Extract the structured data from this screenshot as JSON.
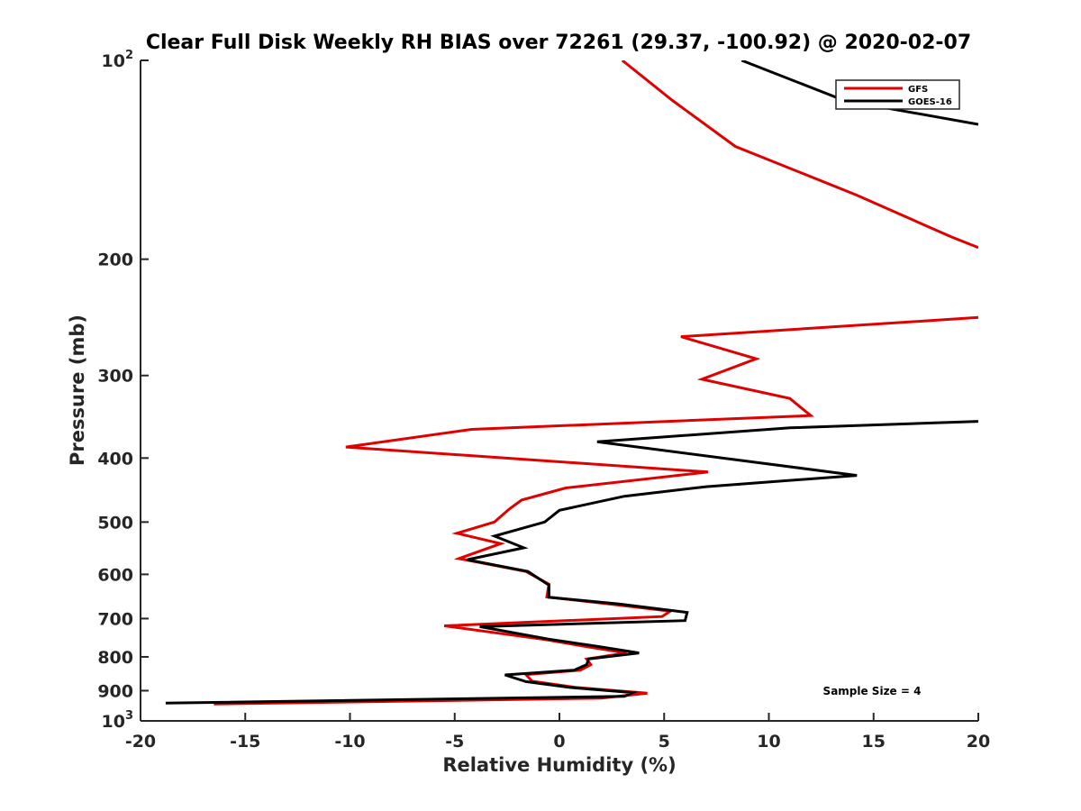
{
  "chart_data": {
    "type": "line",
    "title": "Clear Full Disk Weekly RH BIAS over 72261 (29.37, -100.92) @ 2020-02-07",
    "xlabel": "Relative Humidity (%)",
    "ylabel": "Pressure (mb)",
    "xlim": [
      -20,
      20
    ],
    "ylim": [
      100,
      1000
    ],
    "y_scale": "log",
    "y_reversed": true,
    "grid": false,
    "legend_position": "top-right",
    "x_ticks": [
      -20,
      -15,
      -10,
      -5,
      0,
      5,
      10,
      15,
      20
    ],
    "x_tick_labels": [
      "-20",
      "-15",
      "-10",
      "-5",
      "0",
      "5",
      "10",
      "15",
      "20"
    ],
    "y_ticks": [
      {
        "value": 100,
        "base": "10",
        "sup": "2"
      },
      {
        "value": 200,
        "label": "200"
      },
      {
        "value": 300,
        "label": "300"
      },
      {
        "value": 400,
        "label": "400"
      },
      {
        "value": 500,
        "label": "500"
      },
      {
        "value": 600,
        "label": "600"
      },
      {
        "value": 700,
        "label": "700"
      },
      {
        "value": 800,
        "label": "800"
      },
      {
        "value": 900,
        "label": "900"
      },
      {
        "value": 1000,
        "base": "10",
        "sup": "3"
      }
    ],
    "annotation": "Sample Size = 4",
    "series": [
      {
        "name": "GFS",
        "color": "#e00000",
        "points": [
          [
            3.0,
            100
          ],
          [
            5.4,
            115
          ],
          [
            8.4,
            135
          ],
          [
            14.2,
            160
          ],
          [
            18.7,
            185
          ],
          [
            20.0,
            192
          ],
          [
            null,
            null
          ],
          [
            20.0,
            245
          ],
          [
            5.8,
            262
          ],
          [
            9.4,
            283
          ],
          [
            6.8,
            304
          ],
          [
            11.0,
            325
          ],
          [
            12.0,
            345
          ],
          [
            -4.2,
            362
          ],
          [
            -10.2,
            385
          ],
          [
            7.1,
            420
          ],
          [
            0.3,
            444
          ],
          [
            -1.8,
            463
          ],
          [
            -2.4,
            478
          ],
          [
            -3.1,
            500
          ],
          [
            -4.9,
            520
          ],
          [
            -2.8,
            539
          ],
          [
            -4.8,
            568
          ],
          [
            -1.6,
            594
          ],
          [
            -0.5,
            621
          ],
          [
            -0.6,
            649
          ],
          [
            2.7,
            667
          ],
          [
            5.3,
            682
          ],
          [
            4.9,
            695
          ],
          [
            -5.5,
            718
          ],
          [
            -0.7,
            753
          ],
          [
            1.3,
            772
          ],
          [
            3.2,
            789
          ],
          [
            1.3,
            806
          ],
          [
            1.5,
            822
          ],
          [
            1.0,
            838
          ],
          [
            -1.6,
            851
          ],
          [
            -1.3,
            871
          ],
          [
            0.8,
            890
          ],
          [
            4.2,
            908
          ],
          [
            2.0,
            924
          ],
          [
            -16.5,
            943
          ]
        ]
      },
      {
        "name": "GOES-16",
        "color": "#000000",
        "points": [
          [
            8.7,
            100
          ],
          [
            13.6,
            115
          ],
          [
            20.0,
            125
          ],
          [
            null,
            null
          ],
          [
            20.0,
            352
          ],
          [
            11.0,
            360
          ],
          [
            1.8,
            378
          ],
          [
            14.2,
            425
          ],
          [
            7.0,
            442
          ],
          [
            3.1,
            457
          ],
          [
            0.0,
            480
          ],
          [
            -0.7,
            500
          ],
          [
            -3.1,
            525
          ],
          [
            -1.7,
            547
          ],
          [
            -4.4,
            570
          ],
          [
            -1.5,
            594
          ],
          [
            -0.5,
            623
          ],
          [
            -0.5,
            650
          ],
          [
            2.8,
            665
          ],
          [
            6.1,
            685
          ],
          [
            6.0,
            705
          ],
          [
            -3.8,
            720
          ],
          [
            -0.5,
            752
          ],
          [
            1.9,
            772
          ],
          [
            3.8,
            789
          ],
          [
            1.4,
            806
          ],
          [
            1.3,
            822
          ],
          [
            0.7,
            838
          ],
          [
            -2.6,
            852
          ],
          [
            -1.6,
            872
          ],
          [
            0.5,
            890
          ],
          [
            3.5,
            906
          ],
          [
            3.1,
            918
          ],
          [
            -18.8,
            940
          ]
        ]
      }
    ]
  }
}
